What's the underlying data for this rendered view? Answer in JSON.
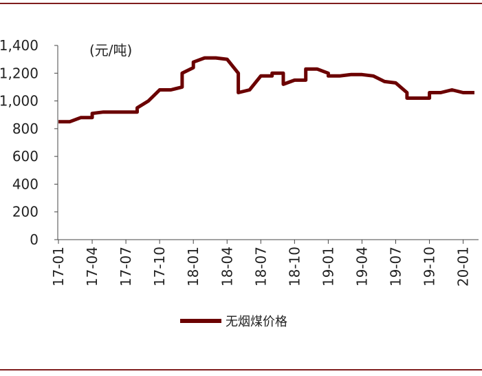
{
  "colors": {
    "series": "#6b0000",
    "axis": "#444444",
    "rule": "#7f1d1d"
  },
  "chart_data": {
    "type": "line",
    "unit_label": "(元/吨)",
    "xlabel": "",
    "ylabel": "",
    "ylim": [
      0,
      1400
    ],
    "yticks": [
      "0",
      "200",
      "400",
      "600",
      "800",
      "1,000",
      "1,200",
      "1,400"
    ],
    "xticks": [
      "17-01",
      "17-04",
      "17-07",
      "17-10",
      "18-01",
      "18-04",
      "18-07",
      "18-10",
      "19-01",
      "19-04",
      "19-07",
      "19-10",
      "20-01"
    ],
    "grid": false,
    "legend": "bottom-center",
    "series": [
      {
        "name": "无烟煤价格",
        "points": [
          [
            "17-01",
            850
          ],
          [
            "17-02",
            850
          ],
          [
            "17-03",
            880
          ],
          [
            "17-04",
            880
          ],
          [
            "17-04",
            910
          ],
          [
            "17-05",
            920
          ],
          [
            "17-06",
            920
          ],
          [
            "17-07",
            920
          ],
          [
            "17-08",
            920
          ],
          [
            "17-08",
            950
          ],
          [
            "17-09",
            1000
          ],
          [
            "17-10",
            1080
          ],
          [
            "17-11",
            1080
          ],
          [
            "17-12",
            1100
          ],
          [
            "17-12",
            1200
          ],
          [
            "18-01",
            1240
          ],
          [
            "18-01",
            1280
          ],
          [
            "18-02",
            1310
          ],
          [
            "18-03",
            1310
          ],
          [
            "18-04",
            1300
          ],
          [
            "18-05",
            1200
          ],
          [
            "18-05",
            1060
          ],
          [
            "18-06",
            1080
          ],
          [
            "18-07",
            1180
          ],
          [
            "18-08",
            1180
          ],
          [
            "18-08",
            1200
          ],
          [
            "18-09",
            1200
          ],
          [
            "18-09",
            1120
          ],
          [
            "18-10",
            1150
          ],
          [
            "18-11",
            1150
          ],
          [
            "18-11",
            1230
          ],
          [
            "18-12",
            1230
          ],
          [
            "19-01",
            1200
          ],
          [
            "19-01",
            1180
          ],
          [
            "19-02",
            1180
          ],
          [
            "19-03",
            1190
          ],
          [
            "19-04",
            1190
          ],
          [
            "19-05",
            1180
          ],
          [
            "19-06",
            1140
          ],
          [
            "19-07",
            1130
          ],
          [
            "19-08",
            1060
          ],
          [
            "19-08",
            1020
          ],
          [
            "19-09",
            1020
          ],
          [
            "19-10",
            1020
          ],
          [
            "19-10",
            1060
          ],
          [
            "19-11",
            1060
          ],
          [
            "19-12",
            1080
          ],
          [
            "20-01",
            1060
          ],
          [
            "20-02",
            1060
          ]
        ]
      }
    ]
  }
}
